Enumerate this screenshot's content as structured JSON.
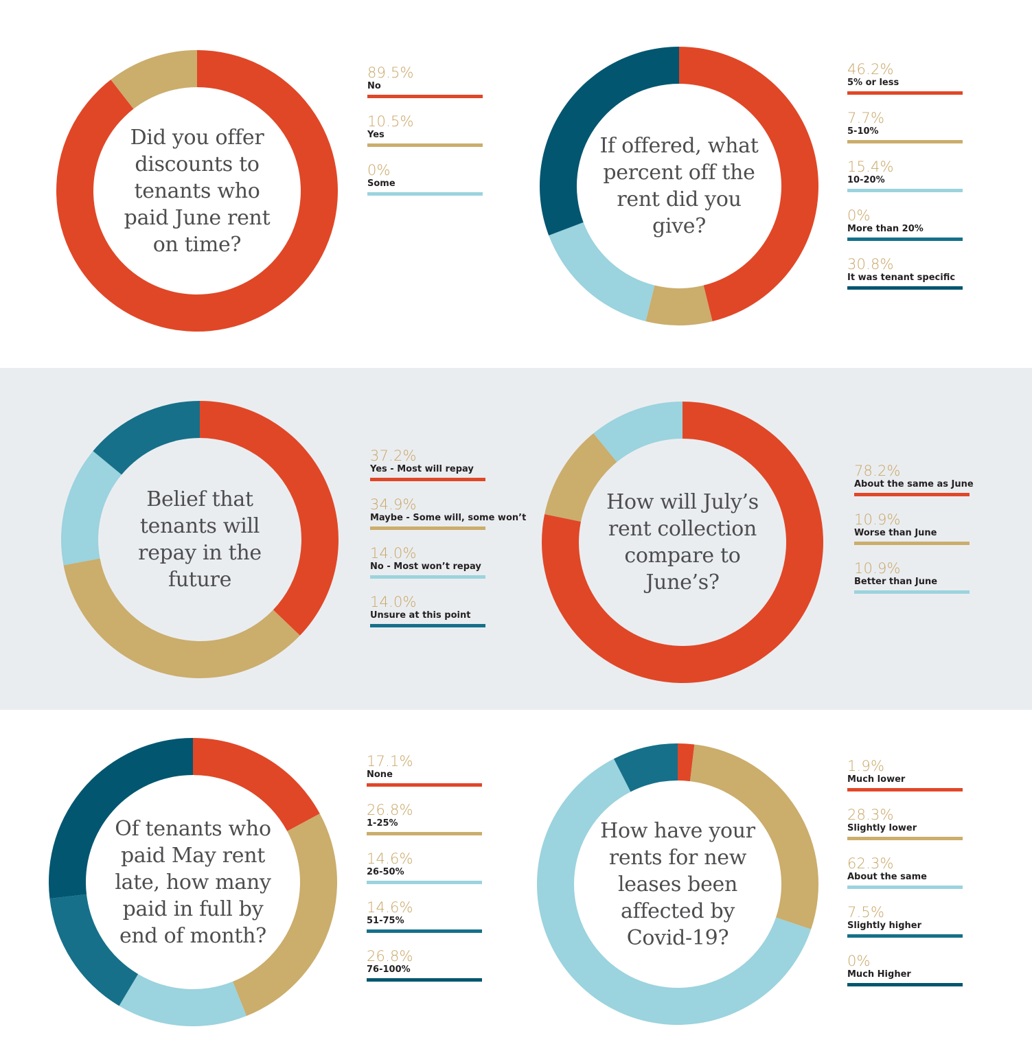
{
  "colors": {
    "red": "#e04727",
    "gold": "#cbad6c",
    "lightblue": "#9bd3de",
    "teal": "#16708a",
    "darkteal": "#025670",
    "band": "#eaedf0"
  },
  "chart_data": [
    {
      "type": "pie",
      "title": "Did you offer discounts to tenants who paid June rent on time?",
      "categories": [
        "No",
        "Yes",
        "Some"
      ],
      "values": [
        89.5,
        10.5,
        0
      ],
      "labels": [
        "89.5%",
        "10.5%",
        "0%"
      ],
      "colors": [
        "#e04727",
        "#cbad6c",
        "#9bd3de"
      ]
    },
    {
      "type": "pie",
      "title": "If offered, what percent off the rent did you give?",
      "categories": [
        "5% or less",
        "5-10%",
        "10-20%",
        "More than 20%",
        "It was tenant specific"
      ],
      "values": [
        46.2,
        7.7,
        15.4,
        0,
        30.8
      ],
      "labels": [
        "46.2%",
        "7.7%",
        "15.4%",
        "0%",
        "30.8%"
      ],
      "colors": [
        "#e04727",
        "#cbad6c",
        "#9bd3de",
        "#16708a",
        "#025670"
      ]
    },
    {
      "type": "pie",
      "title": "Belief that tenants will repay in the future",
      "categories": [
        "Yes - Most will repay",
        "Maybe - Some will, some won’t",
        "No - Most won’t repay",
        "Unsure at this point"
      ],
      "values": [
        37.2,
        34.9,
        14.0,
        14.0
      ],
      "labels": [
        "37.2%",
        "34.9%",
        "14.0%",
        "14.0%"
      ],
      "colors": [
        "#e04727",
        "#cbad6c",
        "#9bd3de",
        "#16708a"
      ]
    },
    {
      "type": "pie",
      "title": "How will July’s rent collection compare to June’s?",
      "categories": [
        "About the same as June",
        "Worse than June",
        "Better than June"
      ],
      "values": [
        78.2,
        10.9,
        10.9
      ],
      "labels": [
        "78.2%",
        "10.9%",
        "10.9%"
      ],
      "colors": [
        "#e04727",
        "#cbad6c",
        "#9bd3de"
      ]
    },
    {
      "type": "pie",
      "title": "Of tenants who paid May rent late, how many paid in full by end of month?",
      "categories": [
        "None",
        "1-25%",
        "26-50%",
        "51-75%",
        "76-100%"
      ],
      "values": [
        17.1,
        26.8,
        14.6,
        14.6,
        26.8
      ],
      "labels": [
        "17.1%",
        "26.8%",
        "14.6%",
        "14.6%",
        "26.8%"
      ],
      "colors": [
        "#e04727",
        "#cbad6c",
        "#9bd3de",
        "#16708a",
        "#025670"
      ]
    },
    {
      "type": "pie",
      "title": "How have your rents for new leases been affected by Covid-19?",
      "categories": [
        "Much lower",
        "Slightly lower",
        "About the same",
        "Slightly higher",
        "Much Higher"
      ],
      "values": [
        1.9,
        28.3,
        62.3,
        7.5,
        0
      ],
      "labels": [
        "1.9%",
        "28.3%",
        "62.3%",
        "7.5%",
        "0%"
      ],
      "colors": [
        "#e04727",
        "#cbad6c",
        "#9bd3de",
        "#16708a",
        "#025670"
      ]
    }
  ]
}
